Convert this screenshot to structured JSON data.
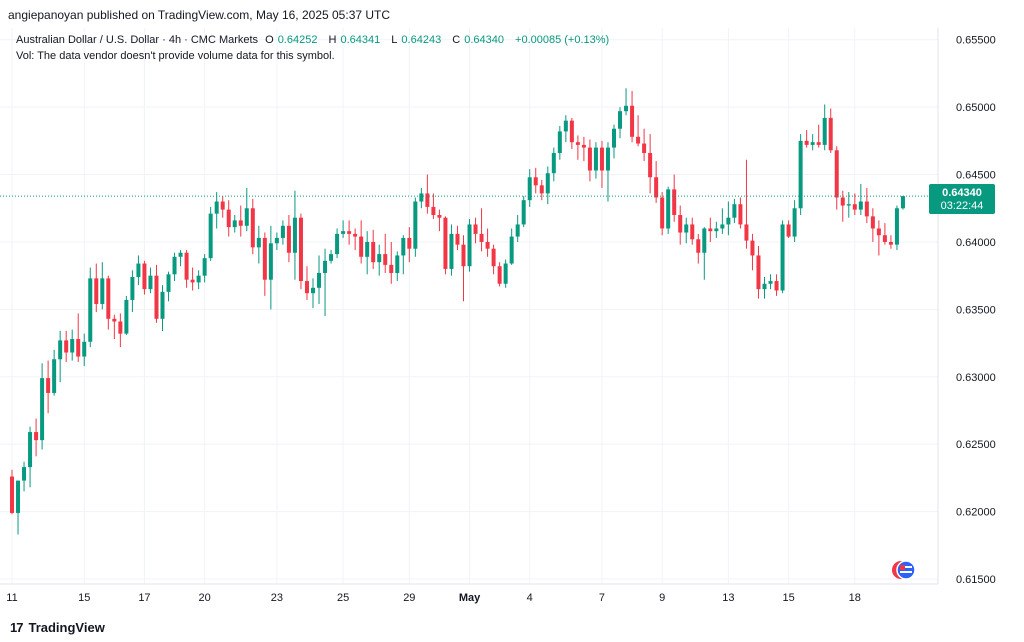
{
  "header": {
    "published_text": "angiepanoyan published on TradingView.com, May 16, 2025 05:37 UTC"
  },
  "legend": {
    "symbol": "Australian Dollar / U.S. Dollar · 4h · CMC Markets",
    "o_label": "O",
    "o_value": "0.64252",
    "h_label": "H",
    "h_value": "0.64341",
    "l_label": "L",
    "l_value": "0.64243",
    "c_label": "C",
    "c_value": "0.64340",
    "change": "+0.00085 (+0.13%)",
    "vol_text": "Vol: The data vendor doesn't provide volume data for this symbol."
  },
  "price_label": {
    "price": "0.64340",
    "countdown": "03:22:44"
  },
  "footer": {
    "logo": "17",
    "brand": "TradingView"
  },
  "colors": {
    "up": "#089981",
    "down": "#f23645",
    "grid": "#f0f3fa",
    "axis_text": "#131722"
  },
  "icons": {
    "flag_badge": "us-flag-event-icon"
  },
  "chart_data": {
    "type": "candlestick",
    "y_axis": {
      "ticks": [
        "0.65500",
        "0.65000",
        "0.64500",
        "0.64000",
        "0.63500",
        "0.63000",
        "0.62500",
        "0.62000",
        "0.61500"
      ],
      "range": [
        0.615,
        0.6555
      ]
    },
    "x_axis": {
      "labels": [
        "11",
        "15",
        "17",
        "20",
        "23",
        "25",
        "29",
        "May",
        "4",
        "7",
        "9",
        "13",
        "15",
        "18"
      ],
      "label_candle_index": [
        0,
        12,
        22,
        32,
        44,
        55,
        66,
        76,
        86,
        98,
        108,
        119,
        129,
        140
      ]
    },
    "last_price": 0.6434,
    "candles": [
      [
        0.6226,
        0.6231,
        0.6198,
        0.6199
      ],
      [
        0.6199,
        0.6223,
        0.6183,
        0.6223
      ],
      [
        0.6223,
        0.6237,
        0.6215,
        0.6233
      ],
      [
        0.6233,
        0.6263,
        0.6218,
        0.6259
      ],
      [
        0.6259,
        0.6269,
        0.6241,
        0.6253
      ],
      [
        0.6253,
        0.631,
        0.6246,
        0.6299
      ],
      [
        0.6299,
        0.6312,
        0.6273,
        0.6288
      ],
      [
        0.6288,
        0.632,
        0.6286,
        0.6313
      ],
      [
        0.6313,
        0.6334,
        0.6296,
        0.6327
      ],
      [
        0.6327,
        0.6334,
        0.6311,
        0.6318
      ],
      [
        0.6318,
        0.6335,
        0.6312,
        0.6328
      ],
      [
        0.6328,
        0.6347,
        0.6311,
        0.6315
      ],
      [
        0.6315,
        0.6332,
        0.6308,
        0.6326
      ],
      [
        0.6326,
        0.6381,
        0.6322,
        0.6373
      ],
      [
        0.6373,
        0.6384,
        0.6348,
        0.6354
      ],
      [
        0.6354,
        0.6385,
        0.635,
        0.6373
      ],
      [
        0.6373,
        0.6375,
        0.6335,
        0.6343
      ],
      [
        0.6343,
        0.6346,
        0.6328,
        0.6341
      ],
      [
        0.6341,
        0.6347,
        0.6322,
        0.6332
      ],
      [
        0.6332,
        0.636,
        0.6331,
        0.6357
      ],
      [
        0.6357,
        0.6379,
        0.6348,
        0.6374
      ],
      [
        0.6374,
        0.639,
        0.6368,
        0.6384
      ],
      [
        0.6384,
        0.6386,
        0.6361,
        0.6365
      ],
      [
        0.6365,
        0.6381,
        0.6362,
        0.6375
      ],
      [
        0.6375,
        0.6383,
        0.634,
        0.6343
      ],
      [
        0.6343,
        0.6368,
        0.6334,
        0.6363
      ],
      [
        0.6363,
        0.6378,
        0.6356,
        0.6376
      ],
      [
        0.6376,
        0.6392,
        0.6371,
        0.6389
      ],
      [
        0.6389,
        0.6394,
        0.6382,
        0.6392
      ],
      [
        0.6392,
        0.6394,
        0.6366,
        0.6372
      ],
      [
        0.6372,
        0.6381,
        0.6364,
        0.637
      ],
      [
        0.637,
        0.6379,
        0.6365,
        0.6375
      ],
      [
        0.6375,
        0.6391,
        0.637,
        0.6388
      ],
      [
        0.6388,
        0.6426,
        0.6386,
        0.6421
      ],
      [
        0.6421,
        0.6437,
        0.641,
        0.643
      ],
      [
        0.643,
        0.6434,
        0.6418,
        0.6424
      ],
      [
        0.6424,
        0.6431,
        0.6404,
        0.6411
      ],
      [
        0.6411,
        0.642,
        0.6407,
        0.6416
      ],
      [
        0.6416,
        0.6427,
        0.6404,
        0.6412
      ],
      [
        0.6412,
        0.644,
        0.6408,
        0.6425
      ],
      [
        0.6425,
        0.6432,
        0.6391,
        0.6396
      ],
      [
        0.6396,
        0.6412,
        0.6384,
        0.6403
      ],
      [
        0.6403,
        0.6407,
        0.636,
        0.6372
      ],
      [
        0.6372,
        0.6412,
        0.635,
        0.6399
      ],
      [
        0.6399,
        0.6407,
        0.6394,
        0.6403
      ],
      [
        0.6403,
        0.6416,
        0.6398,
        0.6412
      ],
      [
        0.6412,
        0.642,
        0.6385,
        0.6392
      ],
      [
        0.6392,
        0.6438,
        0.6372,
        0.6418
      ],
      [
        0.6418,
        0.6421,
        0.6365,
        0.6371
      ],
      [
        0.6371,
        0.6382,
        0.6357,
        0.6362
      ],
      [
        0.6362,
        0.6373,
        0.6351,
        0.6366
      ],
      [
        0.6366,
        0.639,
        0.6354,
        0.6377
      ],
      [
        0.6377,
        0.6395,
        0.6345,
        0.6386
      ],
      [
        0.6386,
        0.6394,
        0.6384,
        0.6391
      ],
      [
        0.6391,
        0.641,
        0.6388,
        0.6406
      ],
      [
        0.6406,
        0.6416,
        0.6403,
        0.6408
      ],
      [
        0.6408,
        0.6416,
        0.6398,
        0.6406
      ],
      [
        0.6406,
        0.641,
        0.6394,
        0.6404
      ],
      [
        0.6404,
        0.6416,
        0.6384,
        0.6389
      ],
      [
        0.6389,
        0.6408,
        0.6376,
        0.64
      ],
      [
        0.64,
        0.6409,
        0.638,
        0.6385
      ],
      [
        0.6385,
        0.6398,
        0.6375,
        0.6391
      ],
      [
        0.6391,
        0.6406,
        0.6377,
        0.6383
      ],
      [
        0.6383,
        0.64,
        0.6369,
        0.6377
      ],
      [
        0.6377,
        0.6393,
        0.6371,
        0.639
      ],
      [
        0.639,
        0.6405,
        0.6376,
        0.6403
      ],
      [
        0.6403,
        0.6411,
        0.6385,
        0.6395
      ],
      [
        0.6395,
        0.6433,
        0.6389,
        0.643
      ],
      [
        0.643,
        0.644,
        0.6425,
        0.6436
      ],
      [
        0.6436,
        0.645,
        0.6421,
        0.6426
      ],
      [
        0.6426,
        0.6436,
        0.6417,
        0.642
      ],
      [
        0.642,
        0.6424,
        0.6408,
        0.6418
      ],
      [
        0.6418,
        0.6419,
        0.6376,
        0.638
      ],
      [
        0.638,
        0.6413,
        0.6375,
        0.6406
      ],
      [
        0.6406,
        0.6412,
        0.6394,
        0.6398
      ],
      [
        0.6398,
        0.6405,
        0.6356,
        0.6382
      ],
      [
        0.6382,
        0.6417,
        0.6378,
        0.6413
      ],
      [
        0.6413,
        0.6418,
        0.6399,
        0.6406
      ],
      [
        0.6406,
        0.6425,
        0.6393,
        0.64
      ],
      [
        0.64,
        0.641,
        0.6389,
        0.6395
      ],
      [
        0.6395,
        0.6398,
        0.6376,
        0.6382
      ],
      [
        0.6382,
        0.6385,
        0.6367,
        0.6369
      ],
      [
        0.6369,
        0.6387,
        0.6366,
        0.6384
      ],
      [
        0.6384,
        0.641,
        0.6383,
        0.6404
      ],
      [
        0.6404,
        0.642,
        0.64,
        0.6413
      ],
      [
        0.6413,
        0.6434,
        0.6411,
        0.6431
      ],
      [
        0.6431,
        0.6454,
        0.6426,
        0.6448
      ],
      [
        0.6448,
        0.6455,
        0.6436,
        0.6442
      ],
      [
        0.6442,
        0.6446,
        0.6431,
        0.6436
      ],
      [
        0.6436,
        0.6456,
        0.6428,
        0.6451
      ],
      [
        0.6451,
        0.647,
        0.6445,
        0.6466
      ],
      [
        0.6466,
        0.6486,
        0.6461,
        0.6482
      ],
      [
        0.6482,
        0.6494,
        0.6474,
        0.649
      ],
      [
        0.649,
        0.6492,
        0.6469,
        0.6474
      ],
      [
        0.6474,
        0.6479,
        0.6461,
        0.6472
      ],
      [
        0.6472,
        0.6478,
        0.646,
        0.647
      ],
      [
        0.647,
        0.6476,
        0.6445,
        0.6453
      ],
      [
        0.6453,
        0.6474,
        0.6447,
        0.647
      ],
      [
        0.647,
        0.6475,
        0.644,
        0.6453
      ],
      [
        0.6453,
        0.6474,
        0.643,
        0.647
      ],
      [
        0.647,
        0.6487,
        0.6462,
        0.6484
      ],
      [
        0.6484,
        0.65,
        0.6477,
        0.6497
      ],
      [
        0.6497,
        0.6514,
        0.6494,
        0.6501
      ],
      [
        0.6501,
        0.6512,
        0.6474,
        0.6478
      ],
      [
        0.6478,
        0.6494,
        0.6471,
        0.6473
      ],
      [
        0.6473,
        0.6484,
        0.646,
        0.6466
      ],
      [
        0.6466,
        0.648,
        0.6436,
        0.6448
      ],
      [
        0.6448,
        0.646,
        0.6429,
        0.6433
      ],
      [
        0.6433,
        0.6437,
        0.6405,
        0.641
      ],
      [
        0.641,
        0.6441,
        0.6406,
        0.6439
      ],
      [
        0.6439,
        0.645,
        0.6415,
        0.642
      ],
      [
        0.642,
        0.6427,
        0.6398,
        0.6407
      ],
      [
        0.6407,
        0.6418,
        0.6399,
        0.6413
      ],
      [
        0.6413,
        0.6418,
        0.6398,
        0.6402
      ],
      [
        0.6402,
        0.6406,
        0.6384,
        0.6392
      ],
      [
        0.6392,
        0.6411,
        0.6372,
        0.641
      ],
      [
        0.641,
        0.6418,
        0.64,
        0.6408
      ],
      [
        0.6408,
        0.6415,
        0.6403,
        0.641
      ],
      [
        0.641,
        0.6425,
        0.6406,
        0.6413
      ],
      [
        0.6413,
        0.643,
        0.6405,
        0.6418
      ],
      [
        0.6418,
        0.6432,
        0.6414,
        0.6428
      ],
      [
        0.6428,
        0.6433,
        0.641,
        0.6413
      ],
      [
        0.6413,
        0.6461,
        0.6395,
        0.6401
      ],
      [
        0.6401,
        0.6406,
        0.6379,
        0.639
      ],
      [
        0.639,
        0.6397,
        0.6358,
        0.6365
      ],
      [
        0.6365,
        0.6374,
        0.6358,
        0.6369
      ],
      [
        0.6369,
        0.6376,
        0.6365,
        0.6371
      ],
      [
        0.6371,
        0.6376,
        0.636,
        0.6364
      ],
      [
        0.6364,
        0.6416,
        0.6362,
        0.6413
      ],
      [
        0.6413,
        0.6416,
        0.6403,
        0.6404
      ],
      [
        0.6404,
        0.6431,
        0.64,
        0.6425
      ],
      [
        0.6425,
        0.648,
        0.642,
        0.6475
      ],
      [
        0.6475,
        0.6483,
        0.647,
        0.6472
      ],
      [
        0.6472,
        0.648,
        0.6468,
        0.6474
      ],
      [
        0.6474,
        0.6487,
        0.647,
        0.6472
      ],
      [
        0.6472,
        0.6502,
        0.6468,
        0.6492
      ],
      [
        0.6492,
        0.6499,
        0.6466,
        0.6468
      ],
      [
        0.6468,
        0.6471,
        0.6424,
        0.6433
      ],
      [
        0.6433,
        0.6438,
        0.6415,
        0.6427
      ],
      [
        0.6427,
        0.6437,
        0.6418,
        0.6428
      ],
      [
        0.6428,
        0.6436,
        0.642,
        0.6424
      ],
      [
        0.6424,
        0.6443,
        0.642,
        0.643
      ],
      [
        0.643,
        0.644,
        0.6414,
        0.6419
      ],
      [
        0.6419,
        0.6425,
        0.64,
        0.641
      ],
      [
        0.641,
        0.6416,
        0.639,
        0.6405
      ],
      [
        0.6405,
        0.6414,
        0.6398,
        0.64
      ],
      [
        0.64,
        0.6405,
        0.6395,
        0.6398
      ],
      [
        0.6398,
        0.6427,
        0.6394,
        0.6425
      ],
      [
        0.6425,
        0.6434,
        0.6424,
        0.6434
      ]
    ]
  }
}
